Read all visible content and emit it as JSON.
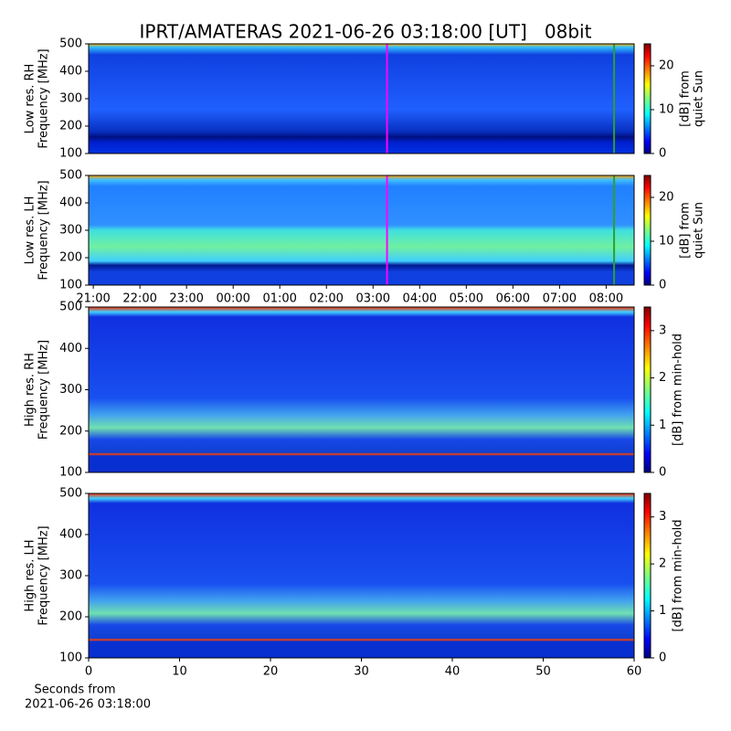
{
  "chart_data": [
    {
      "type": "heatmap",
      "title": "IPRT/AMATERAS 2021-06-26 03:18:00 [UT]   08bit",
      "ylabel": [
        "Low res. RH",
        "Frequency [MHz]"
      ],
      "ylim": [
        100,
        500
      ],
      "yticks": [
        100,
        200,
        300,
        400,
        500
      ],
      "xlim": [
        20.9,
        32.6
      ],
      "cmap": "jet",
      "markers": [
        {
          "x": 27.3,
          "color": "#ff00ff"
        },
        {
          "x": 32.17,
          "color": "#2ca02c"
        }
      ],
      "colorbar": {
        "label": [
          "[dB] from",
          "quiet Sun"
        ],
        "lim": [
          0,
          25
        ],
        "ticks": [
          0,
          10,
          20
        ]
      }
    },
    {
      "type": "heatmap",
      "ylabel": [
        "Low res. LH",
        "Frequency [MHz]"
      ],
      "ylim": [
        100,
        500
      ],
      "yticks": [
        100,
        200,
        300,
        400,
        500
      ],
      "xlim": [
        20.9,
        32.6
      ],
      "xticks": [
        {
          "value": 21,
          "label": "21:00"
        },
        {
          "value": 22,
          "label": "22:00"
        },
        {
          "value": 23,
          "label": "23:00"
        },
        {
          "value": 24,
          "label": "00:00"
        },
        {
          "value": 25,
          "label": "01:00"
        },
        {
          "value": 26,
          "label": "02:00"
        },
        {
          "value": 27,
          "label": "03:00"
        },
        {
          "value": 28,
          "label": "04:00"
        },
        {
          "value": 29,
          "label": "05:00"
        },
        {
          "value": 30,
          "label": "06:00"
        },
        {
          "value": 31,
          "label": "07:00"
        },
        {
          "value": 32,
          "label": "08:00"
        }
      ],
      "cmap": "jet",
      "markers": [
        {
          "x": 27.3,
          "color": "#ff00ff"
        },
        {
          "x": 32.17,
          "color": "#2ca02c"
        }
      ],
      "colorbar": {
        "label": [
          "[dB] from",
          "quiet Sun"
        ],
        "lim": [
          0,
          25
        ],
        "ticks": [
          0,
          10,
          20
        ]
      }
    },
    {
      "type": "heatmap",
      "ylabel": [
        "High res. RH",
        "Frequency [MHz]"
      ],
      "ylim": [
        100,
        500
      ],
      "yticks": [
        100,
        200,
        300,
        400,
        500
      ],
      "xlim": [
        0,
        60
      ],
      "cmap": "jet",
      "colorbar": {
        "label": [
          "[dB] from min-hold"
        ],
        "lim": [
          0,
          3.5
        ],
        "ticks": [
          0,
          1,
          2,
          3
        ]
      }
    },
    {
      "type": "heatmap",
      "ylabel": [
        "High res. LH",
        "Frequency [MHz]"
      ],
      "ylim": [
        100,
        500
      ],
      "yticks": [
        100,
        200,
        300,
        400,
        500
      ],
      "xlim": [
        0,
        60
      ],
      "xticks": [
        0,
        10,
        20,
        30,
        40,
        50,
        60
      ],
      "xlabel": [
        "Seconds from",
        "2021-06-26 03:18:00"
      ],
      "cmap": "jet",
      "colorbar": {
        "label": [
          "[dB] from min-hold"
        ],
        "lim": [
          0,
          3.5
        ],
        "ticks": [
          0,
          1,
          2,
          3
        ]
      }
    }
  ]
}
